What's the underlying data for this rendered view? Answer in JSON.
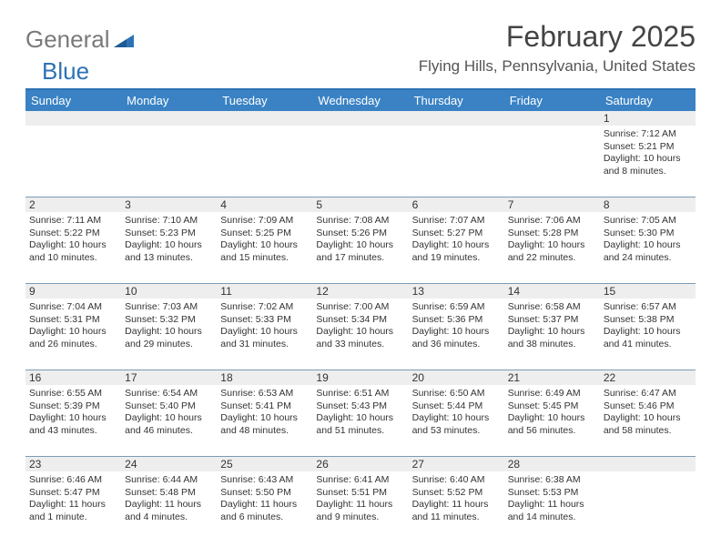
{
  "logo": {
    "general": "General",
    "blue": "Blue"
  },
  "title": "February 2025",
  "location": "Flying Hills, Pennsylvania, United States",
  "colors": {
    "header_bg": "#3a82c4",
    "header_border": "#2d72b5",
    "row_border": "#7a9bb8",
    "daynum_bg": "#eeeeee",
    "text": "#333333",
    "logo_gray": "#7a7a7a",
    "logo_blue": "#2d72b5"
  },
  "day_names": [
    "Sunday",
    "Monday",
    "Tuesday",
    "Wednesday",
    "Thursday",
    "Friday",
    "Saturday"
  ],
  "weeks": [
    [
      null,
      null,
      null,
      null,
      null,
      null,
      {
        "n": "1",
        "sr": "7:12 AM",
        "ss": "5:21 PM",
        "dl": "10 hours and 8 minutes."
      }
    ],
    [
      {
        "n": "2",
        "sr": "7:11 AM",
        "ss": "5:22 PM",
        "dl": "10 hours and 10 minutes."
      },
      {
        "n": "3",
        "sr": "7:10 AM",
        "ss": "5:23 PM",
        "dl": "10 hours and 13 minutes."
      },
      {
        "n": "4",
        "sr": "7:09 AM",
        "ss": "5:25 PM",
        "dl": "10 hours and 15 minutes."
      },
      {
        "n": "5",
        "sr": "7:08 AM",
        "ss": "5:26 PM",
        "dl": "10 hours and 17 minutes."
      },
      {
        "n": "6",
        "sr": "7:07 AM",
        "ss": "5:27 PM",
        "dl": "10 hours and 19 minutes."
      },
      {
        "n": "7",
        "sr": "7:06 AM",
        "ss": "5:28 PM",
        "dl": "10 hours and 22 minutes."
      },
      {
        "n": "8",
        "sr": "7:05 AM",
        "ss": "5:30 PM",
        "dl": "10 hours and 24 minutes."
      }
    ],
    [
      {
        "n": "9",
        "sr": "7:04 AM",
        "ss": "5:31 PM",
        "dl": "10 hours and 26 minutes."
      },
      {
        "n": "10",
        "sr": "7:03 AM",
        "ss": "5:32 PM",
        "dl": "10 hours and 29 minutes."
      },
      {
        "n": "11",
        "sr": "7:02 AM",
        "ss": "5:33 PM",
        "dl": "10 hours and 31 minutes."
      },
      {
        "n": "12",
        "sr": "7:00 AM",
        "ss": "5:34 PM",
        "dl": "10 hours and 33 minutes."
      },
      {
        "n": "13",
        "sr": "6:59 AM",
        "ss": "5:36 PM",
        "dl": "10 hours and 36 minutes."
      },
      {
        "n": "14",
        "sr": "6:58 AM",
        "ss": "5:37 PM",
        "dl": "10 hours and 38 minutes."
      },
      {
        "n": "15",
        "sr": "6:57 AM",
        "ss": "5:38 PM",
        "dl": "10 hours and 41 minutes."
      }
    ],
    [
      {
        "n": "16",
        "sr": "6:55 AM",
        "ss": "5:39 PM",
        "dl": "10 hours and 43 minutes."
      },
      {
        "n": "17",
        "sr": "6:54 AM",
        "ss": "5:40 PM",
        "dl": "10 hours and 46 minutes."
      },
      {
        "n": "18",
        "sr": "6:53 AM",
        "ss": "5:41 PM",
        "dl": "10 hours and 48 minutes."
      },
      {
        "n": "19",
        "sr": "6:51 AM",
        "ss": "5:43 PM",
        "dl": "10 hours and 51 minutes."
      },
      {
        "n": "20",
        "sr": "6:50 AM",
        "ss": "5:44 PM",
        "dl": "10 hours and 53 minutes."
      },
      {
        "n": "21",
        "sr": "6:49 AM",
        "ss": "5:45 PM",
        "dl": "10 hours and 56 minutes."
      },
      {
        "n": "22",
        "sr": "6:47 AM",
        "ss": "5:46 PM",
        "dl": "10 hours and 58 minutes."
      }
    ],
    [
      {
        "n": "23",
        "sr": "6:46 AM",
        "ss": "5:47 PM",
        "dl": "11 hours and 1 minute."
      },
      {
        "n": "24",
        "sr": "6:44 AM",
        "ss": "5:48 PM",
        "dl": "11 hours and 4 minutes."
      },
      {
        "n": "25",
        "sr": "6:43 AM",
        "ss": "5:50 PM",
        "dl": "11 hours and 6 minutes."
      },
      {
        "n": "26",
        "sr": "6:41 AM",
        "ss": "5:51 PM",
        "dl": "11 hours and 9 minutes."
      },
      {
        "n": "27",
        "sr": "6:40 AM",
        "ss": "5:52 PM",
        "dl": "11 hours and 11 minutes."
      },
      {
        "n": "28",
        "sr": "6:38 AM",
        "ss": "5:53 PM",
        "dl": "11 hours and 14 minutes."
      },
      null
    ]
  ],
  "labels": {
    "sunrise": "Sunrise: ",
    "sunset": "Sunset: ",
    "daylight": "Daylight: "
  }
}
